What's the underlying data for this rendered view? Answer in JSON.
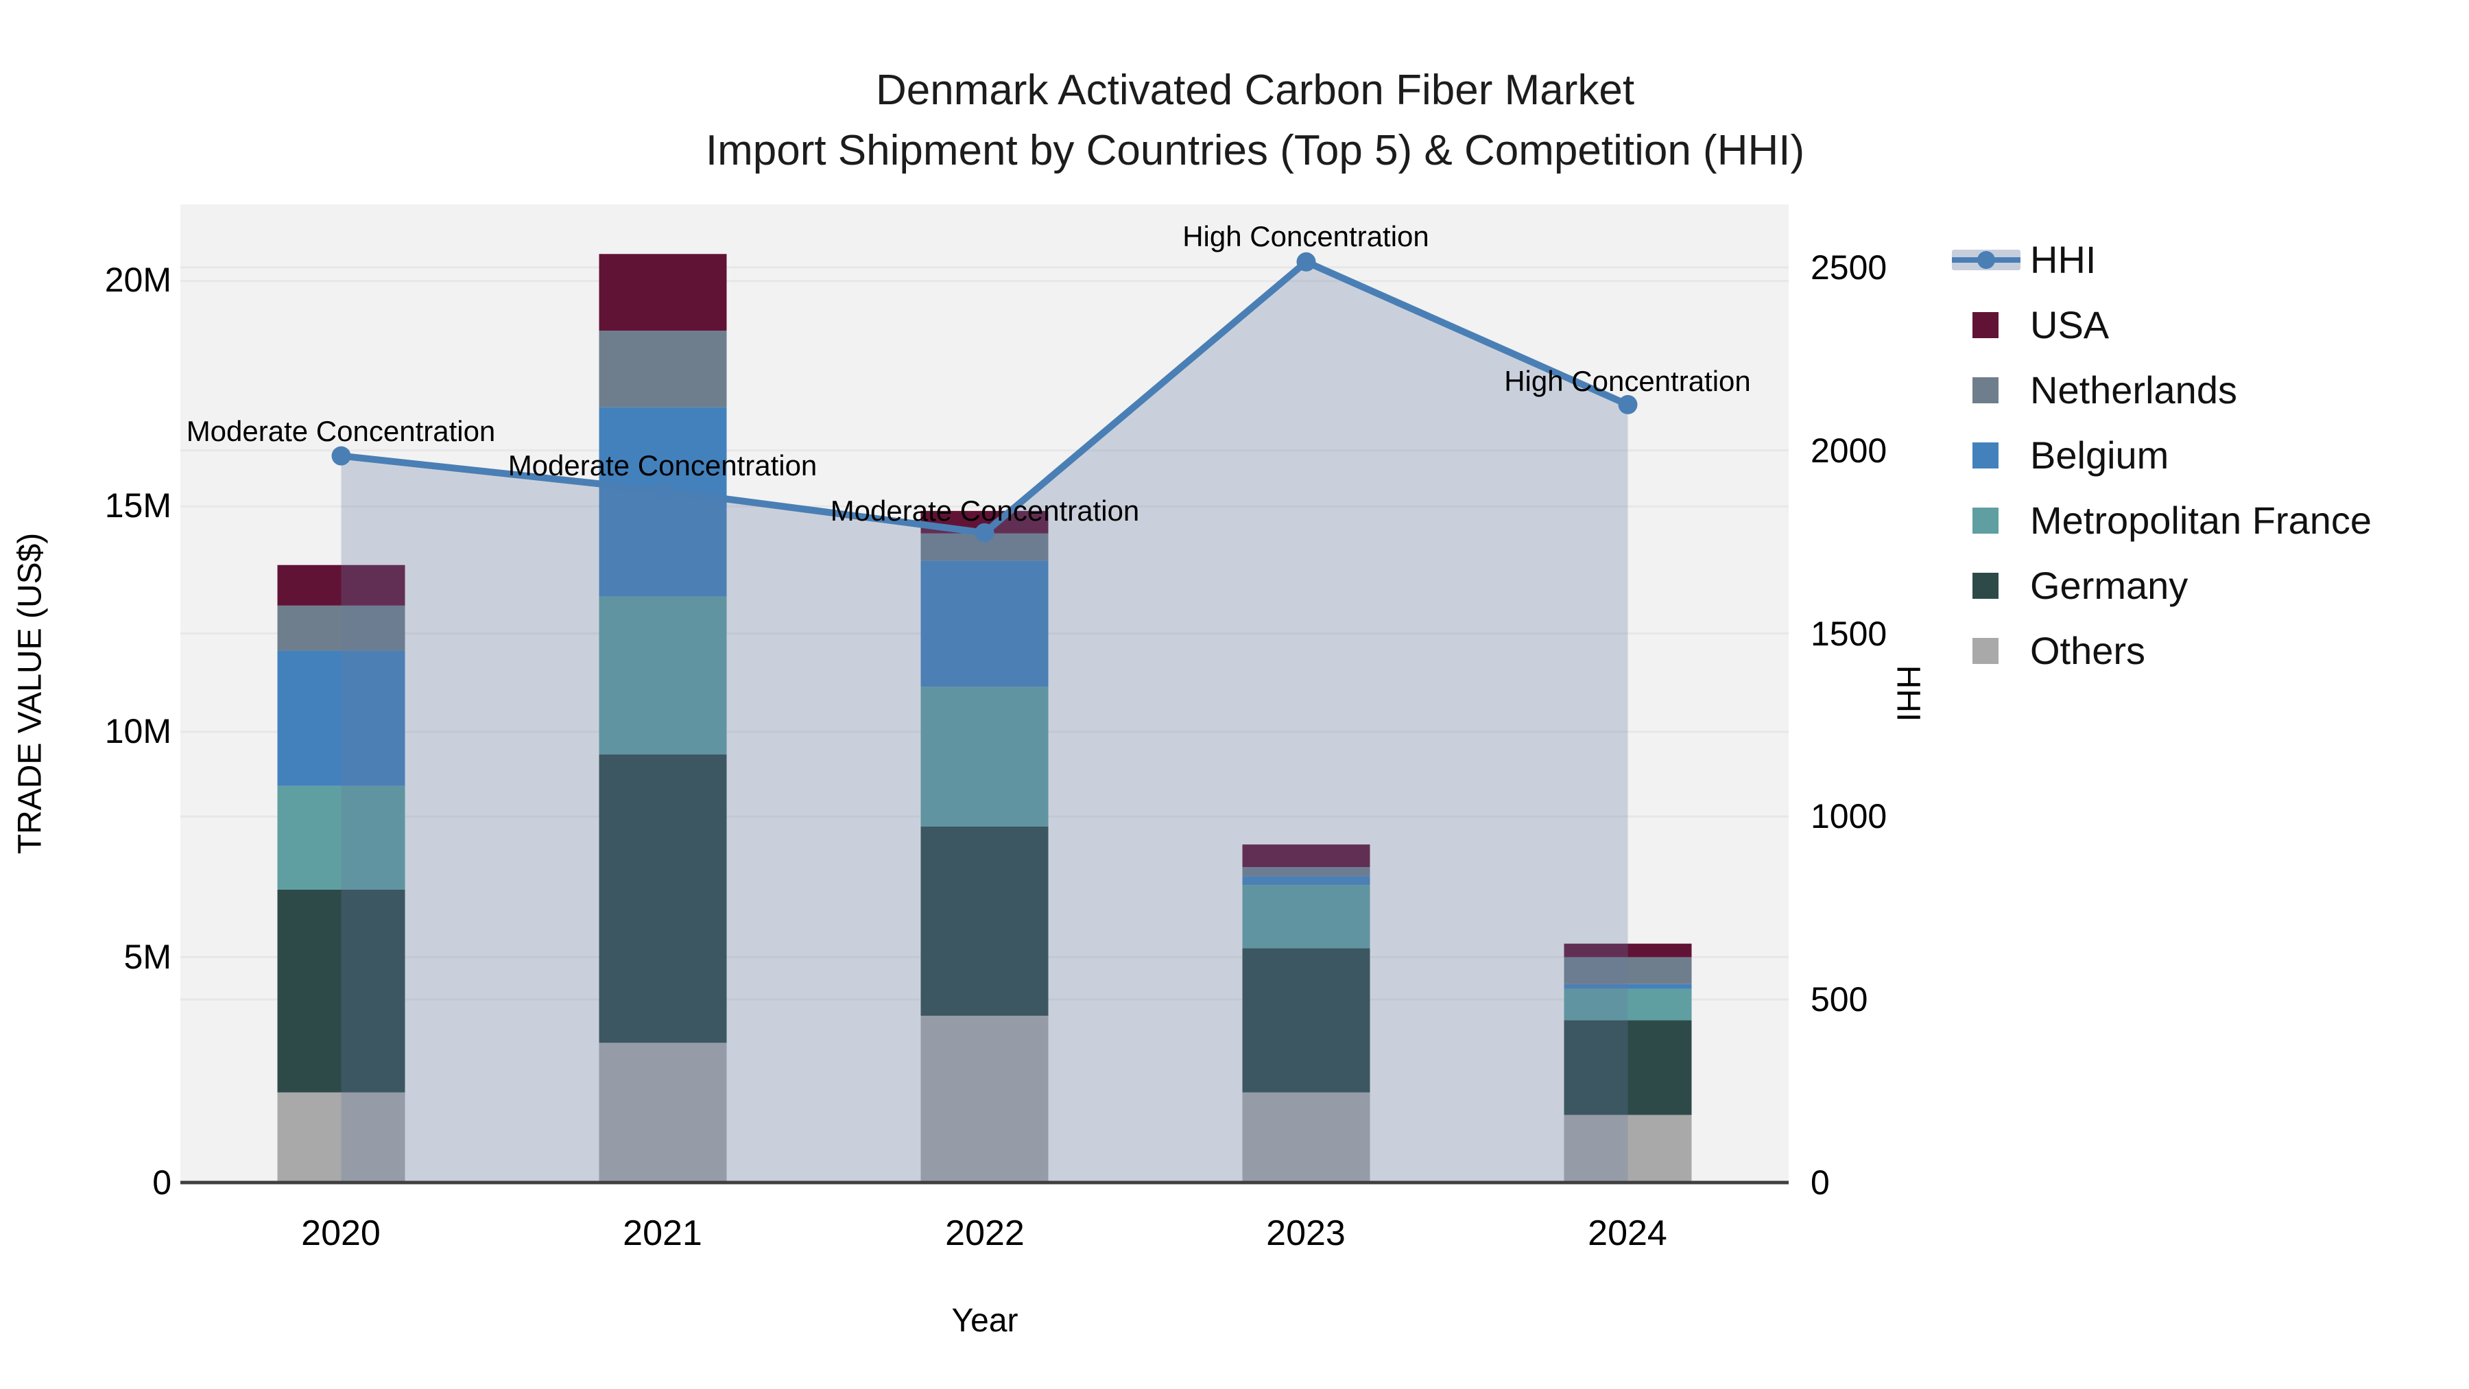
{
  "title": {
    "line1": "Denmark Activated Carbon Fiber Market",
    "line2": "Import Shipment by Countries (Top 5) & Competition (HHI)"
  },
  "axes": {
    "y_left": {
      "title": "TRADE VALUE (US$)",
      "ticks": [
        "0",
        "5M",
        "10M",
        "15M",
        "20M"
      ]
    },
    "y_right": {
      "title": "HHI",
      "ticks": [
        "0",
        "500",
        "1000",
        "1500",
        "2000",
        "2500"
      ]
    },
    "x": {
      "title": "Year"
    }
  },
  "legend": {
    "items": [
      {
        "label": "HHI",
        "type": "line",
        "color": "#4a7fb5"
      },
      {
        "label": "USA",
        "type": "swatch",
        "color": "#611336"
      },
      {
        "label": "Netherlands",
        "type": "swatch",
        "color": "#6f7e8d"
      },
      {
        "label": "Belgium",
        "type": "swatch",
        "color": "#4381bc"
      },
      {
        "label": "Metropolitan France",
        "type": "swatch",
        "color": "#5f9fa1"
      },
      {
        "label": "Germany",
        "type": "swatch",
        "color": "#2d4a49"
      },
      {
        "label": "Others",
        "type": "swatch",
        "color": "#a9a9a9"
      }
    ]
  },
  "chart_data": {
    "type": "bar",
    "subtype": "stacked-bars-with-line",
    "title": "Denmark Activated Carbon Fiber Market — Import Shipment by Countries (Top 5) & Competition (HHI)",
    "categories": [
      "2020",
      "2021",
      "2022",
      "2023",
      "2024"
    ],
    "xlabel": "Year",
    "ylabel_left": "TRADE VALUE (US$)",
    "ylabel_right": "HHI",
    "bar_value_unit": "million US$",
    "ylim_left_musd": [
      0,
      21.7
    ],
    "ylim_right_hhi": [
      0,
      2672
    ],
    "grid": "on",
    "legend_position": "right",
    "series": [
      {
        "name": "Others",
        "color": "#a9a9a9",
        "values": [
          2.0,
          3.1,
          3.7,
          2.0,
          1.5
        ]
      },
      {
        "name": "Germany",
        "color": "#2d4a49",
        "values": [
          4.5,
          6.4,
          4.2,
          3.2,
          2.1
        ]
      },
      {
        "name": "Metropolitan France",
        "color": "#5f9fa1",
        "values": [
          2.3,
          3.5,
          3.1,
          1.4,
          0.7
        ]
      },
      {
        "name": "Belgium",
        "color": "#4381bc",
        "values": [
          3.0,
          4.2,
          2.8,
          0.2,
          0.1
        ]
      },
      {
        "name": "Netherlands",
        "color": "#6f7e8d",
        "values": [
          1.0,
          1.7,
          0.6,
          0.2,
          0.6
        ]
      },
      {
        "name": "USA",
        "color": "#611336",
        "values": [
          0.9,
          1.7,
          0.5,
          0.5,
          0.3
        ]
      }
    ],
    "bar_totals_musd": [
      13.7,
      20.6,
      14.9,
      7.5,
      5.3
    ],
    "line_series": {
      "name": "HHI",
      "axis": "right",
      "color": "#4a7fb5",
      "fill_color": "rgba(99,121,160,0.28)",
      "values": [
        1985,
        1890,
        1775,
        2515,
        2125
      ]
    },
    "annotations": [
      {
        "x": "2020",
        "text": "Moderate Concentration"
      },
      {
        "x": "2021",
        "text": "Moderate Concentration"
      },
      {
        "x": "2022",
        "text": "Moderate Concentration"
      },
      {
        "x": "2023",
        "text": "High Concentration"
      },
      {
        "x": "2024",
        "text": "High Concentration"
      }
    ]
  },
  "colors": {
    "plot_background": "#f2f2f2",
    "gridline": "#e7e7e7",
    "axis_line": "#3f3f3f",
    "hhi_line": "#4a7fb5",
    "hhi_area_fill": "rgba(99,121,160,0.28)",
    "hhi_legend_band": "#c7cedb"
  }
}
